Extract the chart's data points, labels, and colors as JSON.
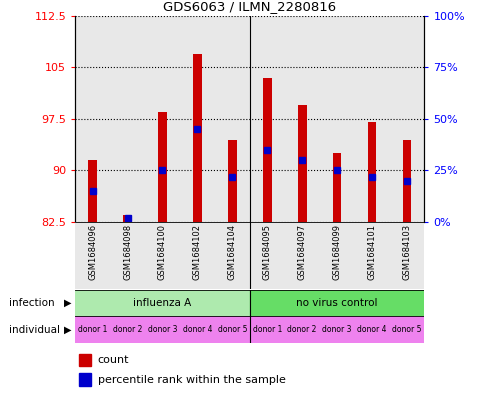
{
  "title": "GDS6063 / ILMN_2280816",
  "samples": [
    "GSM1684096",
    "GSM1684098",
    "GSM1684100",
    "GSM1684102",
    "GSM1684104",
    "GSM1684095",
    "GSM1684097",
    "GSM1684099",
    "GSM1684101",
    "GSM1684103"
  ],
  "counts": [
    91.5,
    83.5,
    98.5,
    107.0,
    94.5,
    103.5,
    99.5,
    92.5,
    97.0,
    94.5
  ],
  "percentiles": [
    15,
    2,
    25,
    45,
    22,
    35,
    30,
    25,
    22,
    20
  ],
  "ymin": 82.5,
  "ymax": 112.5,
  "yticks": [
    82.5,
    90,
    97.5,
    105,
    112.5
  ],
  "ytick_labels": [
    "82.5",
    "90",
    "97.5",
    "105",
    "112.5"
  ],
  "y2ticks": [
    0,
    25,
    50,
    75,
    100
  ],
  "y2labels": [
    "0%",
    "25%",
    "50%",
    "75%",
    "100%"
  ],
  "infection_groups": [
    {
      "label": "influenza A",
      "start": 0,
      "end": 5,
      "color": "#aeeaae"
    },
    {
      "label": "no virus control",
      "start": 5,
      "end": 10,
      "color": "#66dd66"
    }
  ],
  "individual_labels": [
    "donor 1",
    "donor 2",
    "donor 3",
    "donor 4",
    "donor 5",
    "donor 1",
    "donor 2",
    "donor 3",
    "donor 4",
    "donor 5"
  ],
  "individual_color": "#ee82ee",
  "bar_color": "#cc0000",
  "percentile_color": "#0000cc",
  "bg_color": "#e8e8e8"
}
